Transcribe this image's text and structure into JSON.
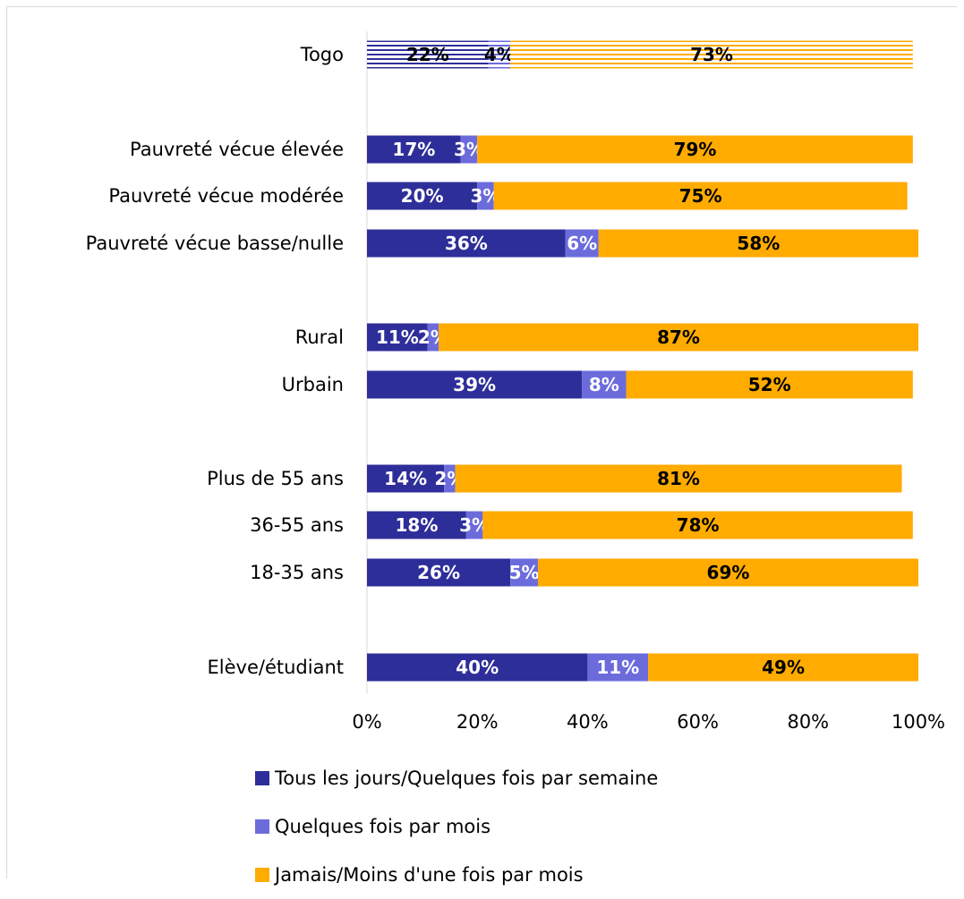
{
  "chart_data": {
    "type": "bar",
    "orientation": "horizontal",
    "stacked": true,
    "categories": [
      "Togo",
      "Pauvreté vécue élevée",
      "Pauvreté vécue modérée",
      "Pauvreté vécue basse/nulle",
      "Rural",
      "Urbain",
      "Plus de 55 ans",
      "36-55 ans",
      "18-35 ans",
      "Elève/étudiant"
    ],
    "series": [
      {
        "name": "Tous les jours/Quelques fois par semaine",
        "color": "#2e2e9a",
        "values": [
          22,
          17,
          20,
          36,
          11,
          39,
          14,
          18,
          26,
          40
        ],
        "labels": [
          "22%",
          "17%",
          "20%",
          "36%",
          "11%",
          "39%",
          "14%",
          "18%",
          "26%",
          "40%"
        ]
      },
      {
        "name": "Quelques fois par mois",
        "color": "#6b6bdc",
        "values": [
          4,
          3,
          3,
          6,
          2,
          8,
          2,
          3,
          5,
          11
        ],
        "labels": [
          "4%",
          "3%",
          "3%",
          "6%",
          "2%",
          "8%",
          "2%",
          "3%",
          "5%",
          "11%"
        ]
      },
      {
        "name": "Jamais/Moins d'une fois par mois",
        "color": "#ffab00",
        "values": [
          73,
          79,
          75,
          58,
          87,
          52,
          81,
          78,
          69,
          49
        ],
        "labels": [
          "73%",
          "79%",
          "75%",
          "58%",
          "87%",
          "52%",
          "81%",
          "78%",
          "69%",
          "49%"
        ]
      }
    ],
    "xlim": [
      0,
      100
    ],
    "xticks": [
      "0%",
      "20%",
      "40%",
      "60%",
      "80%",
      "100%"
    ],
    "highlighted_category": "Togo",
    "grid": false,
    "legend_position": "bottom"
  }
}
